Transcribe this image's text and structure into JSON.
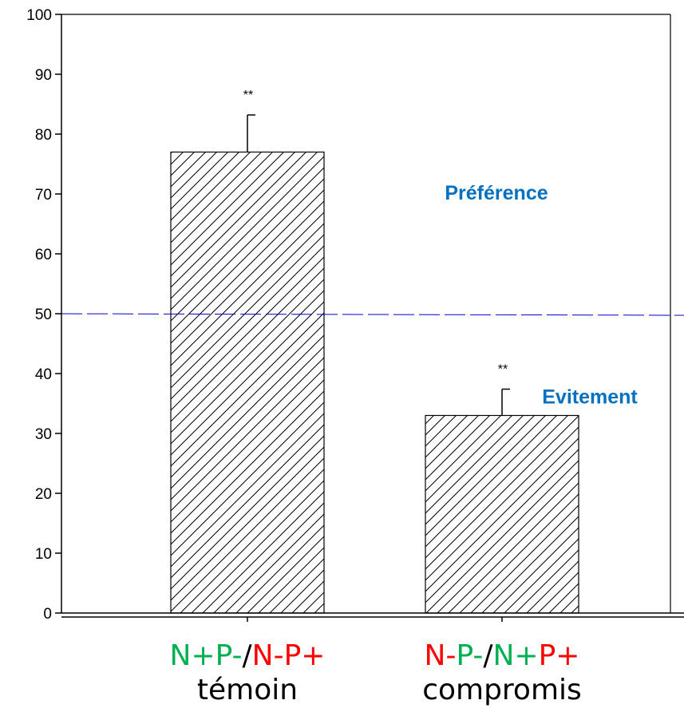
{
  "chart_data": {
    "type": "bar",
    "categories": [
      "témoin",
      "compromis"
    ],
    "values": [
      77,
      33
    ],
    "errors": [
      6.2,
      4.4
    ],
    "significance": [
      "**",
      "**"
    ],
    "ylim": [
      0,
      100
    ],
    "yticks": [
      0,
      10,
      20,
      30,
      40,
      50,
      60,
      70,
      80,
      90,
      100
    ],
    "reference_line": 50,
    "bar_fill": "diagonal-hatch",
    "grid": false,
    "title": "",
    "xlabel": "",
    "ylabel": "",
    "annotations": [
      {
        "text": "Préférence",
        "color": "#0070C0"
      },
      {
        "text": "Evitement",
        "color": "#0070C0"
      }
    ],
    "category_conditions": [
      [
        {
          "text": "N+",
          "color": "#00B050"
        },
        {
          "text": "P-",
          "color": "#00B050"
        },
        {
          "text": "/",
          "color": "#000000"
        },
        {
          "text": "N-",
          "color": "#FF0000"
        },
        {
          "text": "P+",
          "color": "#FF0000"
        }
      ],
      [
        {
          "text": "N-",
          "color": "#FF0000"
        },
        {
          "text": "P-",
          "color": "#00B050"
        },
        {
          "text": "/",
          "color": "#000000"
        },
        {
          "text": "N+",
          "color": "#00B050"
        },
        {
          "text": "P+",
          "color": "#FF0000"
        }
      ]
    ],
    "colors": {
      "reference_line": "#0000CC",
      "axis": "#000000",
      "bar_fill": "#ffffff"
    }
  }
}
